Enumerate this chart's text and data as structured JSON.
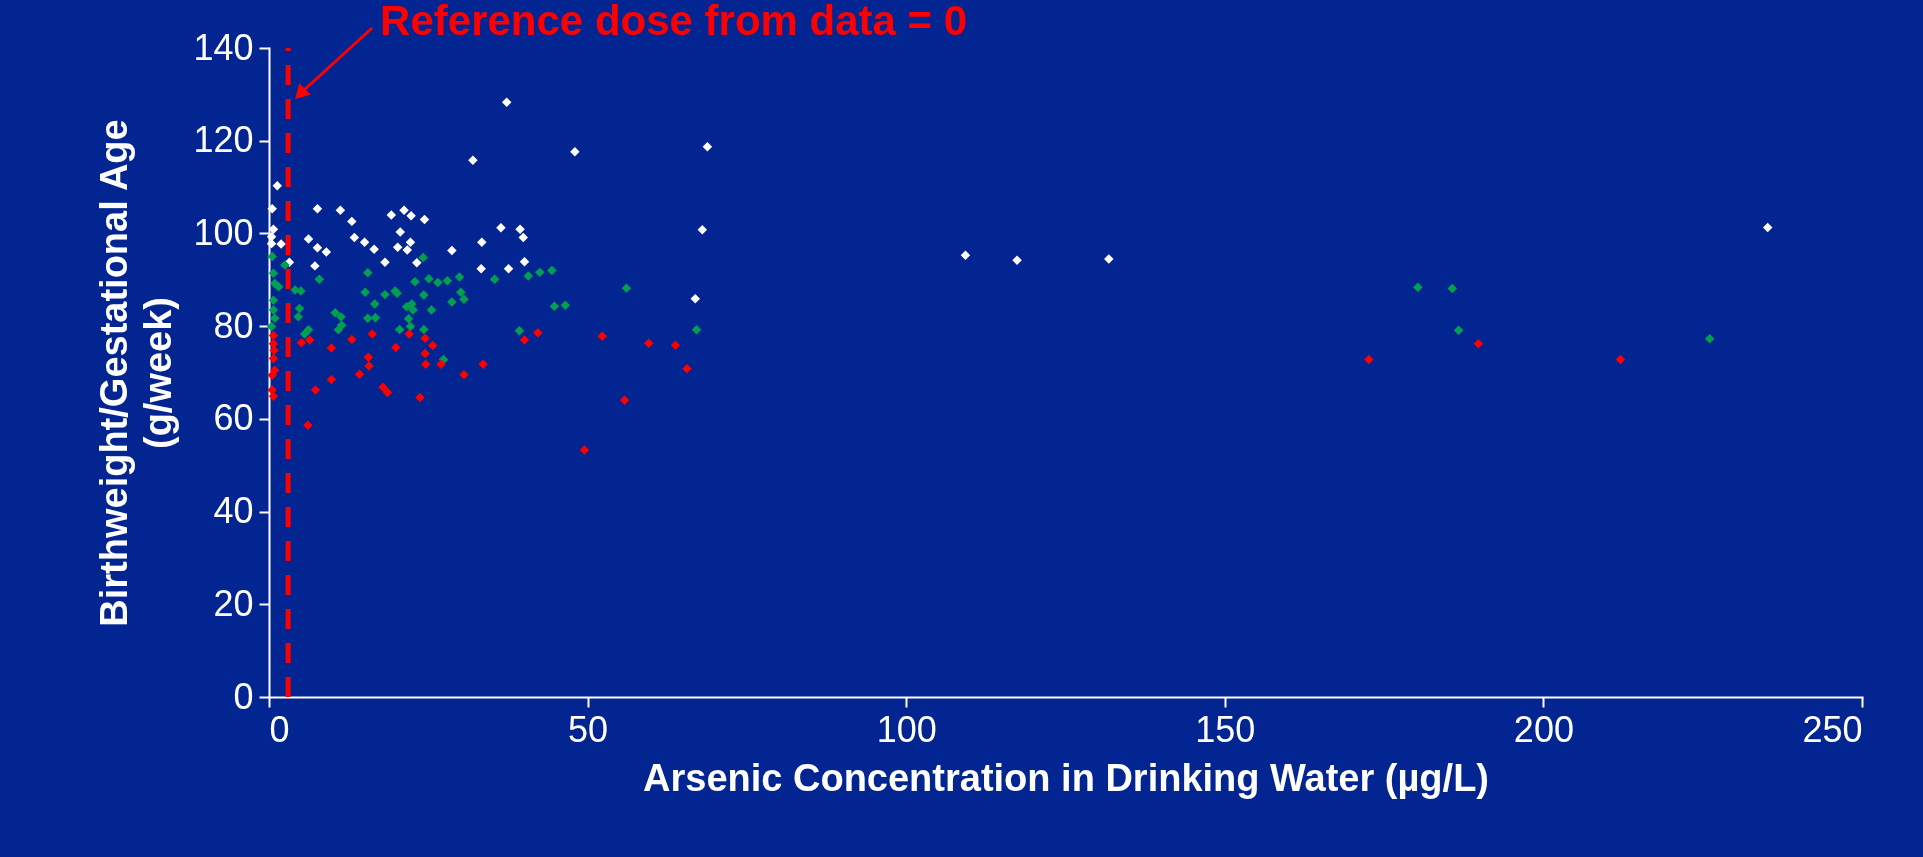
{
  "chart_data": {
    "type": "scatter",
    "xlabel": "Arsenic Concentration in Drinking Water (µg/L)",
    "ylabel": "Birthweight/Gestational Age\n(g/week)",
    "xlim": [
      0,
      250
    ],
    "xticks": [
      0,
      50,
      100,
      150,
      200,
      250
    ],
    "ylim": [
      0,
      140
    ],
    "yticks": [
      0,
      20,
      40,
      60,
      80,
      100,
      120,
      140
    ],
    "grid": false,
    "marker": "diamond",
    "annotations": [
      "Reference dose from data = 0"
    ],
    "ref_lines": [
      {
        "axis": "x",
        "value": 3,
        "color": "#ff0000",
        "line_style": "dashed"
      }
    ],
    "series": [
      {
        "color": "#ffffff",
        "x": [
          37.3,
          48.0,
          32.0,
          1.3,
          0.5,
          7.6,
          11.2,
          13.0,
          19.2,
          21.2,
          22.3,
          24.4,
          0.7,
          20.6,
          6.2,
          13.4,
          15.0,
          1.9,
          22.2,
          7.6,
          9.0,
          16.5,
          20.2,
          21.7,
          28.7,
          33.4,
          36.4,
          39.4,
          39.9,
          3.2,
          7.2,
          18.2,
          23.2,
          33.3,
          37.6,
          40.1,
          0.4,
          0.4,
          68.8,
          68.0,
          66.9,
          109.3,
          117.4,
          131.8,
          235.2
        ],
        "values": [
          128.3,
          117.6,
          115.8,
          110.3,
          105.3,
          105.3,
          105.0,
          102.6,
          104.0,
          105.0,
          103.8,
          103.0,
          100.9,
          100.3,
          98.8,
          99.1,
          98.1,
          97.7,
          98.1,
          96.9,
          96.0,
          96.6,
          97.0,
          96.4,
          96.3,
          98.1,
          101.2,
          100.9,
          99.1,
          93.8,
          93.0,
          93.8,
          93.7,
          92.4,
          92.4,
          93.9,
          99.3,
          97.8,
          118.7,
          100.8,
          85.9,
          95.3,
          94.2,
          94.5,
          101.3
        ]
      },
      {
        "color": "#00a050",
        "x": [
          0.5,
          2.5,
          0.7,
          0.9,
          1.5,
          0.7,
          0.7,
          0.9,
          0.4,
          24.2,
          7.9,
          15.5,
          22.9,
          25.1,
          26.5,
          28.0,
          29.9,
          35.4,
          40.7,
          42.5,
          44.4,
          4.1,
          5.0,
          15.1,
          18.2,
          19.8,
          20.1,
          24.3,
          30.1,
          30.6,
          16.6,
          28.7,
          4.8,
          21.6,
          22.4,
          22.6,
          25.5,
          44.8,
          46.5,
          4.6,
          10.4,
          11.3,
          15.5,
          16.7,
          21.9,
          11.4,
          10.9,
          6.2,
          5.6,
          20.5,
          22.2,
          24.3,
          39.3,
          27.4,
          56.1,
          67.1,
          180.3,
          185.7,
          186.7,
          226.1
        ],
        "values": [
          95.0,
          93.2,
          91.4,
          89.2,
          88.5,
          85.6,
          83.5,
          81.7,
          79.9,
          94.8,
          90.1,
          91.5,
          89.6,
          90.2,
          89.4,
          89.8,
          90.6,
          90.1,
          90.8,
          91.6,
          92.0,
          87.8,
          87.6,
          87.3,
          86.8,
          87.6,
          87.1,
          86.7,
          87.3,
          85.8,
          84.8,
          85.2,
          83.8,
          84.2,
          84.8,
          83.5,
          83.5,
          84.3,
          84.5,
          82.0,
          82.9,
          82.0,
          81.7,
          81.8,
          81.6,
          80.2,
          79.2,
          79.2,
          78.3,
          79.3,
          79.9,
          79.3,
          79.0,
          72.8,
          88.2,
          79.2,
          88.4,
          88.1,
          79.1,
          77.3
        ]
      },
      {
        "color": "#ff0000",
        "x": [
          0.7,
          0.7,
          0.8,
          0.7,
          0.9,
          0.5,
          0.5,
          0.7,
          5.1,
          6.4,
          9.8,
          13.0,
          16.2,
          22.0,
          24.5,
          25.7,
          19.9,
          40.1,
          42.2,
          15.6,
          15.7,
          24.5,
          24.6,
          27.0,
          33.6,
          14.2,
          9.8,
          7.3,
          17.9,
          18.6,
          30.6,
          23.7,
          6.1,
          49.5,
          52.3,
          59.6,
          63.8,
          65.6,
          55.8,
          172.6,
          189.8,
          212.1
        ],
        "values": [
          78.0,
          76.2,
          74.8,
          73.0,
          70.5,
          69.4,
          66.2,
          64.9,
          76.4,
          77.0,
          75.3,
          77.1,
          78.3,
          78.3,
          77.4,
          75.8,
          75.4,
          77.0,
          78.6,
          73.3,
          71.4,
          74.1,
          71.8,
          71.8,
          71.8,
          69.6,
          68.5,
          66.2,
          66.8,
          65.7,
          69.5,
          64.6,
          58.6,
          53.3,
          77.8,
          76.3,
          75.9,
          70.8,
          64.0,
          72.8,
          76.2,
          72.8
        ]
      }
    ]
  }
}
